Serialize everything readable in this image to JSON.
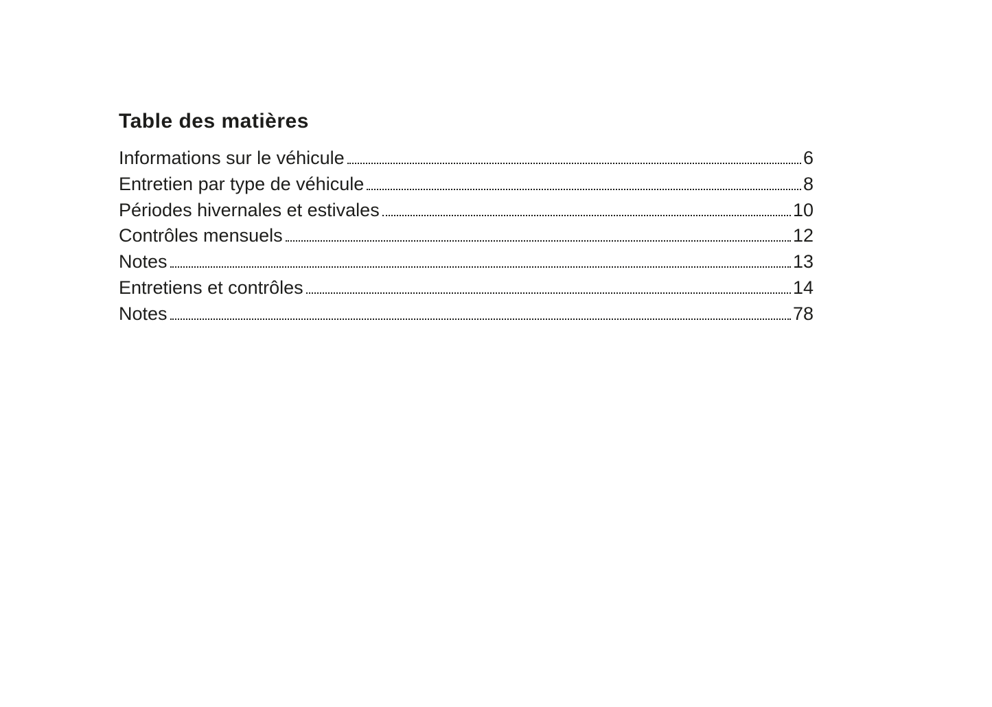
{
  "toc": {
    "title": "Table des matières",
    "entries": [
      {
        "label": "Informations sur le véhicule",
        "page": "6"
      },
      {
        "label": "Entretien par type de véhicule",
        "page": "8"
      },
      {
        "label": "Périodes hivernales et estivales",
        "page": "10"
      },
      {
        "label": "Contrôles mensuels",
        "page": "12"
      },
      {
        "label": "Notes",
        "page": "13"
      },
      {
        "label": "Entretiens et contrôles",
        "page": "14"
      },
      {
        "label": "Notes",
        "page": "78"
      }
    ],
    "text_color": "#1d1d1b",
    "background_color": "#ffffff"
  }
}
